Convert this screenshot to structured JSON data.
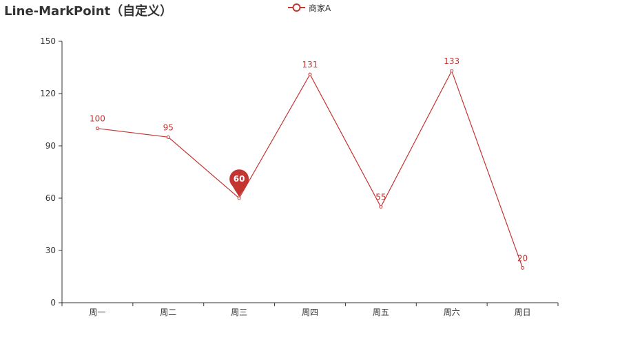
{
  "title": "Line-MarkPoint（自定义）",
  "legend": {
    "label": "商家A"
  },
  "colors": {
    "series": "#c23531",
    "axis": "#333333",
    "axis_text": "#333333",
    "marker_text": "#ffffff"
  },
  "chart_data": {
    "type": "line",
    "title": "Line-MarkPoint（自定义）",
    "categories": [
      "周一",
      "周二",
      "周三",
      "周四",
      "周五",
      "周六",
      "周日"
    ],
    "series": [
      {
        "name": "商家A",
        "values": [
          100,
          95,
          60,
          131,
          55,
          133,
          20
        ]
      }
    ],
    "ylim": [
      0,
      150
    ],
    "yticks": [
      0,
      30,
      60,
      90,
      120,
      150
    ],
    "grid": false,
    "legend_position": "top-center",
    "mark_point": {
      "category": "周三",
      "value": 60,
      "label": "60"
    }
  }
}
